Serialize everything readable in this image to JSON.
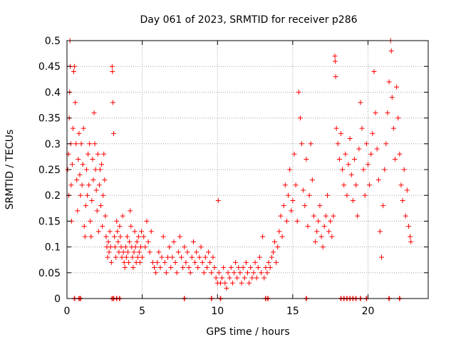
{
  "chart_data": {
    "type": "scatter",
    "title": "Day 061 of 2023, SRMTID for receiver p286",
    "xlabel": "GPS time / hours",
    "ylabel": "SRMTID / TECUs",
    "xlim": [
      0,
      24
    ],
    "ylim": [
      0,
      0.5
    ],
    "xticks": [
      0,
      5,
      10,
      15,
      20
    ],
    "yticks": [
      0,
      0.05,
      0.1,
      0.15,
      0.2,
      0.25,
      0.3,
      0.35,
      0.4,
      0.45,
      0.5
    ],
    "xtick_labels": [
      "0",
      "5",
      "10",
      "15",
      "20"
    ],
    "ytick_labels": [
      "0",
      "0.05",
      "0.1",
      "0.15",
      "0.2",
      "0.25",
      "0.3",
      "0.35",
      "0.4",
      "0.45",
      "0.5"
    ],
    "grid": true,
    "marker": "+",
    "color": "#ff0000",
    "series": [
      {
        "name": "SRMTID",
        "points": [
          [
            0.05,
            0.25
          ],
          [
            0.1,
            0.28
          ],
          [
            0.12,
            0.2
          ],
          [
            0.15,
            0.35
          ],
          [
            0.18,
            0.4
          ],
          [
            0.2,
            0.5
          ],
          [
            0.22,
            0.45
          ],
          [
            0.25,
            0.3
          ],
          [
            0.28,
            0.22
          ],
          [
            0.3,
            0.15
          ],
          [
            0.35,
            0.26
          ],
          [
            0.4,
            0.33
          ],
          [
            0.45,
            0.44
          ],
          [
            0.5,
            0.45
          ],
          [
            0.55,
            0.38
          ],
          [
            0.6,
            0.3
          ],
          [
            0.65,
            0.23
          ],
          [
            0.7,
            0.17
          ],
          [
            0.75,
            0.27
          ],
          [
            0.8,
            0.32
          ],
          [
            0.85,
            0.24
          ],
          [
            0.9,
            0.2
          ],
          [
            0.95,
            0.3
          ],
          [
            1.0,
            0.22
          ],
          [
            1.05,
            0.26
          ],
          [
            1.1,
            0.33
          ],
          [
            1.15,
            0.14
          ],
          [
            1.2,
            0.12
          ],
          [
            1.25,
            0.18
          ],
          [
            1.3,
            0.25
          ],
          [
            1.35,
            0.2
          ],
          [
            1.4,
            0.28
          ],
          [
            1.45,
            0.22
          ],
          [
            1.5,
            0.3
          ],
          [
            1.55,
            0.15
          ],
          [
            1.6,
            0.12
          ],
          [
            1.65,
            0.19
          ],
          [
            1.7,
            0.27
          ],
          [
            1.75,
            0.23
          ],
          [
            1.8,
            0.36
          ],
          [
            1.85,
            0.3
          ],
          [
            1.9,
            0.25
          ],
          [
            1.95,
            0.21
          ],
          [
            2.0,
            0.17
          ],
          [
            2.05,
            0.28
          ],
          [
            2.1,
            0.13
          ],
          [
            2.15,
            0.22
          ],
          [
            2.2,
            0.25
          ],
          [
            2.25,
            0.18
          ],
          [
            2.3,
            0.26
          ],
          [
            2.35,
            0.14
          ],
          [
            2.4,
            0.2
          ],
          [
            2.45,
            0.28
          ],
          [
            2.5,
            0.23
          ],
          [
            2.55,
            0.16
          ],
          [
            2.6,
            0.12
          ],
          [
            2.65,
            0.1
          ],
          [
            2.7,
            0.08
          ],
          [
            2.75,
            0.11
          ],
          [
            2.8,
            0.09
          ],
          [
            2.85,
            0.13
          ],
          [
            2.9,
            0.1
          ],
          [
            2.95,
            0.07
          ],
          [
            3.0,
            0.45
          ],
          [
            3.02,
            0.44
          ],
          [
            3.05,
            0.38
          ],
          [
            3.1,
            0.32
          ],
          [
            3.15,
            0.12
          ],
          [
            3.2,
            0.1
          ],
          [
            3.25,
            0.08
          ],
          [
            3.3,
            0.15
          ],
          [
            3.35,
            0.13
          ],
          [
            3.4,
            0.11
          ],
          [
            3.45,
            0.09
          ],
          [
            3.5,
            0.14
          ],
          [
            3.55,
            0.12
          ],
          [
            3.6,
            0.1
          ],
          [
            3.65,
            0.08
          ],
          [
            3.7,
            0.16
          ],
          [
            3.75,
            0.09
          ],
          [
            3.8,
            0.07
          ],
          [
            3.85,
            0.06
          ],
          [
            3.9,
            0.1
          ],
          [
            3.95,
            0.08
          ],
          [
            4.0,
            0.12
          ],
          [
            4.05,
            0.09
          ],
          [
            4.1,
            0.07
          ],
          [
            4.15,
            0.11
          ],
          [
            4.2,
            0.17
          ],
          [
            4.25,
            0.14
          ],
          [
            4.3,
            0.1
          ],
          [
            4.35,
            0.08
          ],
          [
            4.4,
            0.06
          ],
          [
            4.45,
            0.09
          ],
          [
            4.5,
            0.13
          ],
          [
            4.55,
            0.1
          ],
          [
            4.6,
            0.07
          ],
          [
            4.65,
            0.11
          ],
          [
            4.7,
            0.08
          ],
          [
            4.75,
            0.12
          ],
          [
            4.8,
            0.09
          ],
          [
            4.85,
            0.07
          ],
          [
            4.9,
            0.1
          ],
          [
            4.95,
            0.13
          ],
          [
            5.0,
            0.08
          ],
          [
            5.1,
            0.12
          ],
          [
            5.2,
            0.1
          ],
          [
            5.3,
            0.15
          ],
          [
            5.4,
            0.11
          ],
          [
            5.5,
            0.09
          ],
          [
            5.6,
            0.13
          ],
          [
            5.7,
            0.07
          ],
          [
            5.8,
            0.06
          ],
          [
            5.9,
            0.05
          ],
          [
            6.0,
            0.07
          ],
          [
            6.1,
            0.09
          ],
          [
            6.2,
            0.06
          ],
          [
            6.3,
            0.08
          ],
          [
            6.4,
            0.12
          ],
          [
            6.5,
            0.07
          ],
          [
            6.6,
            0.05
          ],
          [
            6.7,
            0.08
          ],
          [
            6.8,
            0.1
          ],
          [
            6.9,
            0.06
          ],
          [
            7.0,
            0.08
          ],
          [
            7.1,
            0.11
          ],
          [
            7.2,
            0.07
          ],
          [
            7.3,
            0.05
          ],
          [
            7.4,
            0.09
          ],
          [
            7.5,
            0.12
          ],
          [
            7.6,
            0.08
          ],
          [
            7.7,
            0.06
          ],
          [
            7.8,
            0.1
          ],
          [
            7.9,
            0.07
          ],
          [
            8.0,
            0.09
          ],
          [
            8.1,
            0.06
          ],
          [
            8.2,
            0.05
          ],
          [
            8.3,
            0.08
          ],
          [
            8.4,
            0.11
          ],
          [
            8.5,
            0.07
          ],
          [
            8.6,
            0.09
          ],
          [
            8.7,
            0.06
          ],
          [
            8.8,
            0.08
          ],
          [
            8.9,
            0.1
          ],
          [
            9.0,
            0.07
          ],
          [
            9.1,
            0.05
          ],
          [
            9.2,
            0.08
          ],
          [
            9.3,
            0.06
          ],
          [
            9.4,
            0.09
          ],
          [
            9.5,
            0.07
          ],
          [
            9.6,
            0.05
          ],
          [
            9.7,
            0.08
          ],
          [
            9.8,
            0.06
          ],
          [
            9.9,
            0.04
          ],
          [
            10.0,
            0.03
          ],
          [
            10.05,
            0.19
          ],
          [
            10.1,
            0.05
          ],
          [
            10.2,
            0.03
          ],
          [
            10.3,
            0.04
          ],
          [
            10.4,
            0.06
          ],
          [
            10.5,
            0.03
          ],
          [
            10.6,
            0.02
          ],
          [
            10.7,
            0.05
          ],
          [
            10.8,
            0.04
          ],
          [
            10.9,
            0.06
          ],
          [
            11.0,
            0.03
          ],
          [
            11.1,
            0.05
          ],
          [
            11.2,
            0.07
          ],
          [
            11.3,
            0.04
          ],
          [
            11.4,
            0.06
          ],
          [
            11.5,
            0.05
          ],
          [
            11.6,
            0.03
          ],
          [
            11.7,
            0.06
          ],
          [
            11.8,
            0.04
          ],
          [
            11.9,
            0.07
          ],
          [
            12.0,
            0.05
          ],
          [
            12.1,
            0.03
          ],
          [
            12.2,
            0.06
          ],
          [
            12.3,
            0.04
          ],
          [
            12.4,
            0.05
          ],
          [
            12.5,
            0.07
          ],
          [
            12.6,
            0.04
          ],
          [
            12.7,
            0.06
          ],
          [
            12.8,
            0.08
          ],
          [
            12.9,
            0.05
          ],
          [
            13.0,
            0.12
          ],
          [
            13.1,
            0.04
          ],
          [
            13.2,
            0.06
          ],
          [
            13.3,
            0.05
          ],
          [
            13.4,
            0.07
          ],
          [
            13.5,
            0.06
          ],
          [
            13.6,
            0.08
          ],
          [
            13.7,
            0.09
          ],
          [
            13.8,
            0.11
          ],
          [
            13.9,
            0.07
          ],
          [
            14.0,
            0.1
          ],
          [
            14.1,
            0.13
          ],
          [
            14.2,
            0.16
          ],
          [
            14.3,
            0.12
          ],
          [
            14.4,
            0.18
          ],
          [
            14.5,
            0.22
          ],
          [
            14.6,
            0.15
          ],
          [
            14.7,
            0.2
          ],
          [
            14.8,
            0.25
          ],
          [
            14.9,
            0.17
          ],
          [
            15.0,
            0.19
          ],
          [
            15.1,
            0.28
          ],
          [
            15.2,
            0.22
          ],
          [
            15.3,
            0.15
          ],
          [
            15.4,
            0.4
          ],
          [
            15.5,
            0.35
          ],
          [
            15.6,
            0.3
          ],
          [
            15.7,
            0.21
          ],
          [
            15.8,
            0.18
          ],
          [
            15.9,
            0.27
          ],
          [
            16.0,
            0.14
          ],
          [
            16.1,
            0.2
          ],
          [
            16.2,
            0.3
          ],
          [
            16.3,
            0.23
          ],
          [
            16.4,
            0.16
          ],
          [
            16.5,
            0.11
          ],
          [
            16.6,
            0.13
          ],
          [
            16.7,
            0.15
          ],
          [
            16.8,
            0.18
          ],
          [
            16.9,
            0.12
          ],
          [
            17.0,
            0.1
          ],
          [
            17.1,
            0.14
          ],
          [
            17.2,
            0.16
          ],
          [
            17.3,
            0.2
          ],
          [
            17.4,
            0.13
          ],
          [
            17.5,
            0.15
          ],
          [
            17.6,
            0.12
          ],
          [
            17.7,
            0.16
          ],
          [
            17.8,
            0.47
          ],
          [
            17.82,
            0.46
          ],
          [
            17.85,
            0.43
          ],
          [
            17.9,
            0.33
          ],
          [
            18.0,
            0.3
          ],
          [
            18.1,
            0.27
          ],
          [
            18.2,
            0.32
          ],
          [
            18.3,
            0.25
          ],
          [
            18.4,
            0.22
          ],
          [
            18.5,
            0.28
          ],
          [
            18.6,
            0.2
          ],
          [
            18.7,
            0.26
          ],
          [
            18.8,
            0.31
          ],
          [
            18.9,
            0.24
          ],
          [
            19.0,
            0.19
          ],
          [
            19.1,
            0.27
          ],
          [
            19.2,
            0.22
          ],
          [
            19.3,
            0.16
          ],
          [
            19.4,
            0.29
          ],
          [
            19.5,
            0.38
          ],
          [
            19.6,
            0.33
          ],
          [
            19.7,
            0.25
          ],
          [
            19.8,
            0.2
          ],
          [
            19.9,
            0.3
          ],
          [
            20.0,
            0.26
          ],
          [
            20.1,
            0.22
          ],
          [
            20.2,
            0.28
          ],
          [
            20.3,
            0.32
          ],
          [
            20.4,
            0.44
          ],
          [
            20.5,
            0.36
          ],
          [
            20.6,
            0.29
          ],
          [
            20.7,
            0.23
          ],
          [
            20.8,
            0.13
          ],
          [
            20.9,
            0.08
          ],
          [
            21.0,
            0.18
          ],
          [
            21.1,
            0.25
          ],
          [
            21.2,
            0.3
          ],
          [
            21.3,
            0.36
          ],
          [
            21.4,
            0.42
          ],
          [
            21.5,
            0.5
          ],
          [
            21.55,
            0.48
          ],
          [
            21.6,
            0.39
          ],
          [
            21.7,
            0.33
          ],
          [
            21.8,
            0.27
          ],
          [
            21.9,
            0.41
          ],
          [
            22.0,
            0.35
          ],
          [
            22.1,
            0.28
          ],
          [
            22.2,
            0.22
          ],
          [
            22.3,
            0.19
          ],
          [
            22.4,
            0.25
          ],
          [
            22.5,
            0.16
          ],
          [
            22.6,
            0.21
          ],
          [
            22.7,
            0.14
          ],
          [
            22.8,
            0.12
          ],
          [
            22.85,
            0.11
          ]
        ]
      }
    ],
    "zero_markers_x": [
      0.5,
      0.8,
      0.9,
      3.0,
      3.1,
      3.3,
      3.5,
      7.8,
      9.6,
      10.2,
      13.2,
      13.35,
      15.9,
      18.2,
      18.4,
      18.6,
      18.8,
      19.0,
      19.2,
      19.5,
      19.9,
      21.4,
      22.1
    ]
  }
}
